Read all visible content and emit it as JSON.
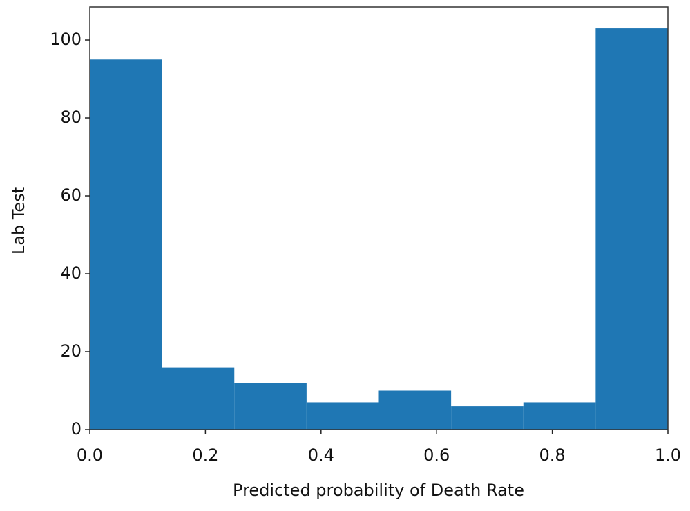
{
  "chart_data": {
    "type": "histogram",
    "xlabel": "Predicted probability of Death Rate",
    "ylabel": "Lab Test",
    "bins": [
      0,
      0.125,
      0.25,
      0.375,
      0.5,
      0.625,
      0.75,
      0.875,
      1.0
    ],
    "values": [
      95,
      16,
      12,
      7,
      10,
      6,
      7,
      103
    ],
    "color": "#1f77b4",
    "xlim": [
      0,
      1
    ],
    "ylim": [
      0,
      108.5
    ],
    "xticks": [
      {
        "value": 0,
        "label": "0.0"
      },
      0.2,
      0.4,
      0.6,
      0.8,
      {
        "value": 1,
        "label": "1.0"
      }
    ],
    "yticks": [
      0,
      20,
      40,
      60,
      80,
      100
    ],
    "grid": false
  }
}
